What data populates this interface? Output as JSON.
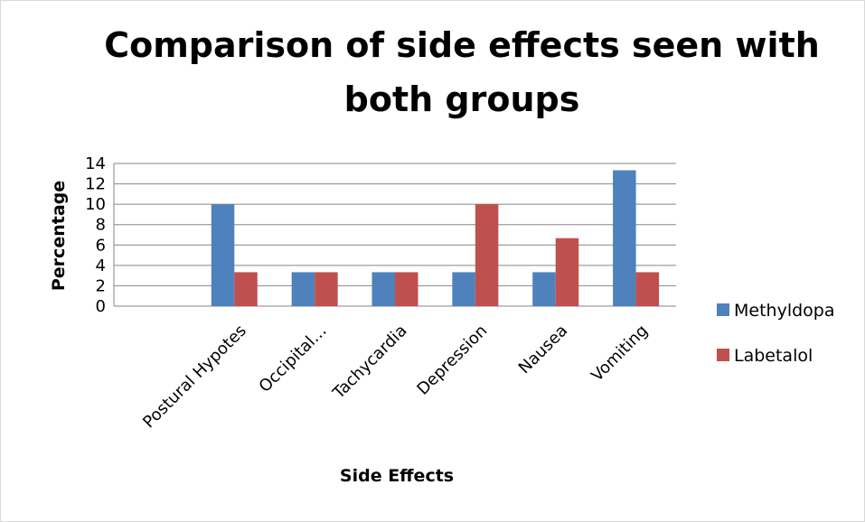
{
  "chart_data": {
    "type": "bar",
    "title": "Comparison of side effects  seen with both groups",
    "xlabel": "Side Effects",
    "ylabel": "Percentage",
    "categories": [
      "",
      "Postural Hypotes",
      "Occipital…",
      "Tachycardia",
      "Depression",
      "Nausea",
      "Vomiting"
    ],
    "series": [
      {
        "name": "Methyldopa",
        "color": "#4f81bd",
        "values": [
          0,
          10,
          3.33,
          3.33,
          3.33,
          3.33,
          13.33
        ]
      },
      {
        "name": "Labetalol",
        "color": "#c0504d",
        "values": [
          0,
          3.33,
          3.33,
          3.33,
          10,
          6.67,
          3.33
        ]
      }
    ],
    "ylim": [
      0,
      14
    ],
    "yticks": [
      0,
      2,
      4,
      6,
      8,
      10,
      12,
      14
    ],
    "grid": true,
    "legend_position": "right"
  }
}
